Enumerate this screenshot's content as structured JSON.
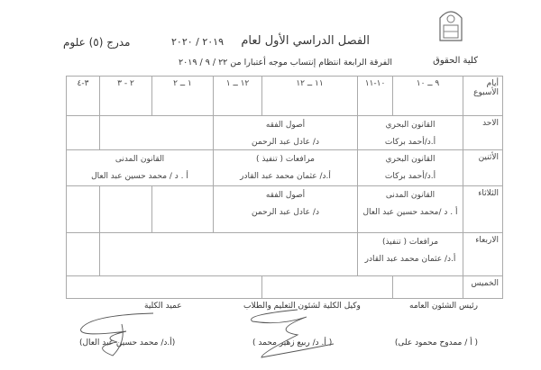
{
  "header": {
    "title": "الفصل الدراسي الأول لعام",
    "years": "٢٠١٩ / ٢٠٢٠",
    "grade": "مدرج (٥) علوم",
    "faculty": "كلية الحقوق",
    "subtitle": "الفرقة الرابعة انتظام إنتساب موجه أعتبارا من ٢٢ / ٩ / ٢٠١٩",
    "logo_text": "جامعة أسيوط"
  },
  "table": {
    "day_header": "أيام الأسبوع",
    "times": [
      "٩ ــ ١٠",
      "١٠-١١",
      "١١ ــ ١٢",
      "١٢ ــ ١",
      "١ ــ ٢",
      "٢ - ٣",
      "٣-٤"
    ],
    "rows": {
      "sunday": {
        "day": "الاحد",
        "c1": {
          "subject": "القانون البحري",
          "teacher": "أ.د/أحمد بركات"
        },
        "c2": {
          "subject": "أصول الفقه",
          "teacher": "د/ عادل عبد الرحمن"
        }
      },
      "monday": {
        "day": "الأثنين",
        "c1": {
          "subject": "القانون البحري",
          "teacher": "أ.د/أحمد بركات"
        },
        "c2": {
          "subject": "مرافعات ( تنفيذ )",
          "teacher": "أ.د/ عثمان محمد عبد القادر"
        },
        "c3": {
          "subject": "القانون المدنى",
          "teacher": "أ . د / محمد حسين عبد العال"
        }
      },
      "tuesday": {
        "day": "الثلاثاء",
        "c1": {
          "subject": "القانون المدنى",
          "teacher": "أ . د /محمد حسين عبد العال"
        },
        "c2": {
          "subject": "أصول الفقه",
          "teacher": "د/ عادل عبد الرحمن"
        }
      },
      "wednesday": {
        "day": "الاربعاء",
        "c1": {
          "subject": "مرافعات ( تنفيذ)",
          "teacher": "أ.د/ عثمان محمد عبد القادر"
        }
      },
      "thursday": {
        "day": "الخميس"
      }
    }
  },
  "signatures": [
    {
      "title": "رئيس الشئون العامه",
      "name": "( أ / ممدوح محمود على)"
    },
    {
      "title": "وكيل الكلية لشئون التعليم والطلاب",
      "name": "( أ. د/ ربيع زهير محمد )"
    },
    {
      "title": "عميد الكلية",
      "name": "(أ.د/ محمد حسين عبد العال)"
    }
  ]
}
